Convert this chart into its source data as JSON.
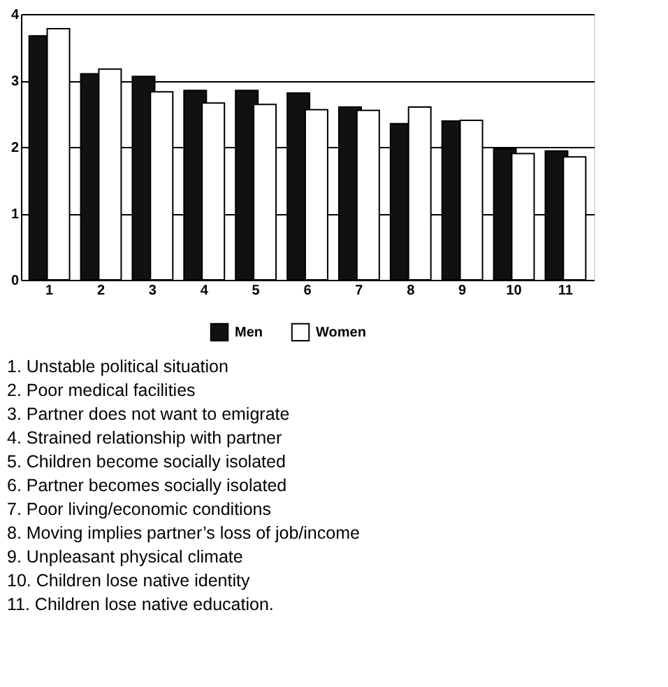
{
  "chart_data": {
    "type": "bar",
    "categories": [
      "1",
      "2",
      "3",
      "4",
      "5",
      "6",
      "7",
      "8",
      "9",
      "10",
      "11"
    ],
    "series": [
      {
        "name": "Men",
        "color": "#111111",
        "values": [
          3.67,
          3.1,
          3.06,
          2.85,
          2.85,
          2.81,
          2.6,
          2.35,
          2.39,
          1.97,
          1.94
        ]
      },
      {
        "name": "Women",
        "color": "#ffffff",
        "values": [
          3.78,
          3.17,
          2.83,
          2.66,
          2.64,
          2.56,
          2.55,
          2.6,
          2.4,
          1.9,
          1.85
        ]
      }
    ],
    "ylim": [
      0,
      4
    ],
    "yticks": [
      0,
      1,
      2,
      3,
      4
    ],
    "grid": "y",
    "legend": "bottom",
    "annotations": [
      "1.  Unstable political situation",
      "2.  Poor medical facilities",
      "3.  Partner does not want to emigrate",
      "4.  Strained relationship with partner",
      "5.  Children become socially isolated",
      "6.  Partner becomes socially isolated",
      "7.  Poor living/economic conditions",
      "8.  Moving implies partner’s loss of job/income",
      "9.  Unpleasant physical climate",
      "10.  Children lose native identity",
      "11.  Children lose native education."
    ]
  }
}
